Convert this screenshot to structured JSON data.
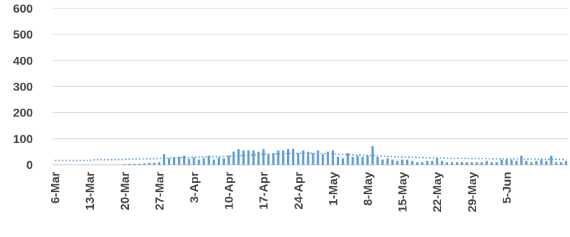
{
  "chart_data": {
    "type": "bar",
    "title": "",
    "xlabel": "",
    "ylabel": "",
    "ylim": [
      0,
      600
    ],
    "y_ticks": [
      "0",
      "100",
      "200",
      "300",
      "400",
      "500",
      "600"
    ],
    "x_ticks": [
      "6-Mar",
      "13-Mar",
      "20-Mar",
      "27-Mar",
      "3-Apr",
      "10-Apr",
      "17-Apr",
      "24-Apr",
      "1-May",
      "8-May",
      "15-May",
      "22-May",
      "29-May",
      "5-Jun"
    ],
    "grid": true,
    "legend": "none",
    "colors": {
      "series": "#5b9bd5",
      "grid": "#d9d9d9",
      "text": "#404040"
    },
    "start_date": "6-Mar",
    "series": [
      {
        "kind": "bar",
        "values": [
          0,
          0,
          0,
          0,
          0,
          0,
          0,
          0,
          0,
          0,
          0,
          0,
          0,
          0,
          2,
          3,
          3,
          3,
          5,
          8,
          8,
          10,
          40,
          25,
          28,
          30,
          35,
          22,
          28,
          20,
          25,
          35,
          20,
          28,
          25,
          35,
          50,
          60,
          55,
          55,
          55,
          50,
          60,
          40,
          45,
          55,
          55,
          60,
          62,
          45,
          55,
          50,
          45,
          55,
          40,
          50,
          55,
          30,
          25,
          45,
          30,
          35,
          30,
          35,
          72,
          30,
          20,
          25,
          20,
          15,
          20,
          20,
          15,
          10,
          10,
          15,
          15,
          25,
          15,
          10,
          10,
          10,
          10,
          10,
          10,
          10,
          10,
          15,
          10,
          10,
          20,
          20,
          20,
          15,
          35,
          15,
          10,
          15,
          20,
          15,
          35,
          10,
          10,
          15
        ]
      },
      {
        "kind": "trend",
        "values": [
          17,
          17,
          17,
          17,
          17,
          17,
          17,
          17,
          19,
          19,
          19,
          19,
          20,
          20,
          21,
          22,
          22,
          22,
          23,
          23,
          23,
          24,
          25,
          26,
          27,
          27,
          28,
          28,
          29,
          29,
          30,
          30,
          31,
          31,
          32,
          33,
          34,
          35,
          36,
          37,
          38,
          39,
          40,
          41,
          42,
          42,
          43,
          43,
          44,
          44,
          45,
          45,
          44,
          44,
          43,
          43,
          42,
          41,
          40,
          39,
          38,
          38,
          37,
          36,
          36,
          35,
          33,
          32,
          31,
          30,
          30,
          29,
          29,
          28,
          28,
          27,
          27,
          26,
          26,
          25,
          25,
          25,
          25,
          24,
          24,
          24,
          24,
          24,
          23,
          23,
          23,
          23,
          23,
          23,
          22,
          22,
          22,
          22,
          22,
          21,
          21,
          21,
          21,
          21
        ]
      }
    ]
  }
}
